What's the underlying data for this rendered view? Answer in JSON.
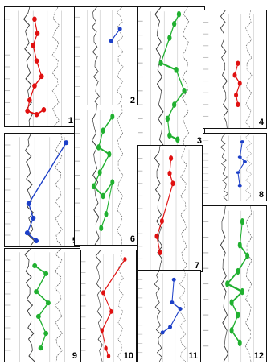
{
  "figure": {
    "panels": [
      {
        "label": "1",
        "color": "#e01010",
        "points": [
          [
            0.42,
            0.1
          ],
          [
            0.46,
            0.22
          ],
          [
            0.4,
            0.32
          ],
          [
            0.45,
            0.45
          ],
          [
            0.52,
            0.58
          ],
          [
            0.42,
            0.66
          ],
          [
            0.35,
            0.78
          ],
          [
            0.32,
            0.87
          ],
          [
            0.45,
            0.9
          ],
          [
            0.55,
            0.86
          ]
        ]
      },
      {
        "label": "2",
        "color": "#1c3fc8",
        "points": [
          [
            0.58,
            0.34
          ],
          [
            0.72,
            0.22
          ]
        ]
      },
      {
        "label": "3",
        "color": "#20b030",
        "points": [
          [
            0.62,
            0.05
          ],
          [
            0.55,
            0.12
          ],
          [
            0.48,
            0.22
          ],
          [
            0.35,
            0.4
          ],
          [
            0.58,
            0.45
          ],
          [
            0.7,
            0.6
          ],
          [
            0.55,
            0.7
          ],
          [
            0.45,
            0.8
          ],
          [
            0.48,
            0.92
          ],
          [
            0.6,
            0.95
          ]
        ]
      },
      {
        "label": "4",
        "color": "#e01010",
        "points": [
          [
            0.55,
            0.45
          ],
          [
            0.5,
            0.55
          ],
          [
            0.58,
            0.62
          ],
          [
            0.52,
            0.72
          ],
          [
            0.55,
            0.8
          ]
        ]
      },
      {
        "label": "5",
        "color": "#1c3fc8",
        "points": [
          [
            0.82,
            0.08
          ],
          [
            0.32,
            0.62
          ],
          [
            0.38,
            0.75
          ],
          [
            0.3,
            0.88
          ],
          [
            0.42,
            0.95
          ]
        ]
      },
      {
        "label": "6",
        "color": "#20b030",
        "points": [
          [
            0.6,
            0.08
          ],
          [
            0.45,
            0.18
          ],
          [
            0.38,
            0.3
          ],
          [
            0.55,
            0.35
          ],
          [
            0.4,
            0.48
          ],
          [
            0.3,
            0.58
          ],
          [
            0.45,
            0.65
          ],
          [
            0.6,
            0.55
          ],
          [
            0.5,
            0.78
          ],
          [
            0.42,
            0.88
          ]
        ]
      },
      {
        "label": "7",
        "color": "#e01010",
        "points": [
          [
            0.52,
            0.1
          ],
          [
            0.5,
            0.22
          ],
          [
            0.55,
            0.3
          ],
          [
            0.38,
            0.6
          ],
          [
            0.3,
            0.72
          ],
          [
            0.35,
            0.85
          ]
        ]
      },
      {
        "label": "8",
        "color": "#1c3fc8",
        "points": [
          [
            0.62,
            0.12
          ],
          [
            0.58,
            0.35
          ],
          [
            0.66,
            0.42
          ],
          [
            0.55,
            0.58
          ],
          [
            0.58,
            0.78
          ]
        ]
      },
      {
        "label": "9",
        "color": "#20b030",
        "points": [
          [
            0.4,
            0.15
          ],
          [
            0.55,
            0.22
          ],
          [
            0.42,
            0.38
          ],
          [
            0.58,
            0.48
          ],
          [
            0.45,
            0.6
          ],
          [
            0.55,
            0.75
          ],
          [
            0.48,
            0.88
          ]
        ]
      },
      {
        "label": "10",
        "color": "#e01010",
        "points": [
          [
            0.8,
            0.08
          ],
          [
            0.4,
            0.38
          ],
          [
            0.55,
            0.55
          ],
          [
            0.38,
            0.72
          ],
          [
            0.45,
            0.88
          ],
          [
            0.5,
            0.95
          ]
        ]
      },
      {
        "label": "11",
        "color": "#1c3fc8",
        "points": [
          [
            0.58,
            0.1
          ],
          [
            0.55,
            0.35
          ],
          [
            0.68,
            0.42
          ],
          [
            0.52,
            0.62
          ],
          [
            0.4,
            0.68
          ]
        ]
      },
      {
        "label": "12",
        "color": "#20b030",
        "points": [
          [
            0.62,
            0.1
          ],
          [
            0.58,
            0.25
          ],
          [
            0.7,
            0.32
          ],
          [
            0.55,
            0.42
          ],
          [
            0.38,
            0.5
          ],
          [
            0.62,
            0.55
          ],
          [
            0.45,
            0.62
          ],
          [
            0.55,
            0.7
          ],
          [
            0.45,
            0.8
          ],
          [
            0.58,
            0.88
          ]
        ]
      }
    ]
  }
}
